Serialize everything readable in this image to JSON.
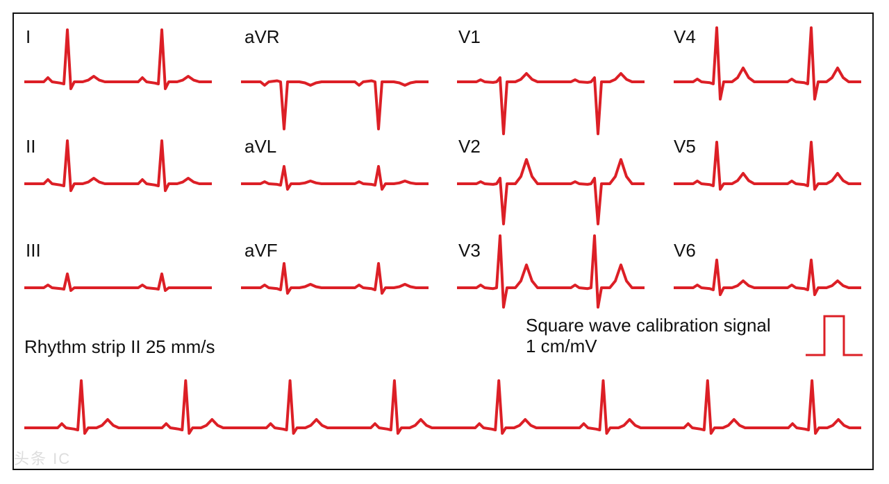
{
  "leads": [
    {
      "label": "I"
    },
    {
      "label": "aVR"
    },
    {
      "label": "V1"
    },
    {
      "label": "V4"
    },
    {
      "label": "II"
    },
    {
      "label": "aVL"
    },
    {
      "label": "V2"
    },
    {
      "label": "V5"
    },
    {
      "label": "III"
    },
    {
      "label": "aVF"
    },
    {
      "label": "V3"
    },
    {
      "label": "V6"
    }
  ],
  "rhythm_strip": {
    "label": "Rhythm strip II 25 mm/s"
  },
  "calibration": {
    "line1": "Square wave calibration signal",
    "line2": "1 cm/mV"
  },
  "watermark": "头条 IC",
  "colors": {
    "trace": "#dc1f26",
    "text": "#111111",
    "border": "#111111"
  }
}
